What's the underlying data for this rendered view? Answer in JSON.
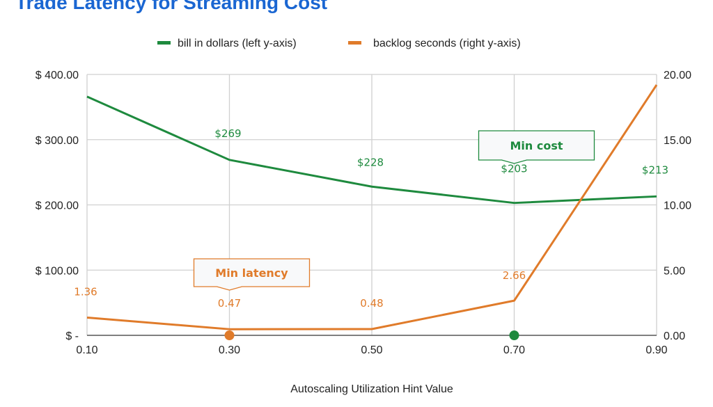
{
  "chart_data": {
    "type": "line",
    "title": "Trade Latency for Streaming Cost",
    "xlabel": "Autoscaling Utilization Hint Value",
    "x": [
      0.1,
      0.3,
      0.5,
      0.7,
      0.9
    ],
    "x_tick_labels": [
      "0.10",
      "0.30",
      "0.50",
      "0.70",
      "0.90"
    ],
    "y_left": {
      "range": [
        0,
        400
      ],
      "ticks": [
        0,
        100,
        200,
        300,
        400
      ],
      "tick_labels": [
        "$ -",
        "$ 100.00",
        "$ 200.00",
        "$ 300.00",
        "$ 400.00"
      ]
    },
    "y_right": {
      "range": [
        0,
        20
      ],
      "ticks": [
        0,
        5,
        10,
        15,
        20
      ],
      "tick_labels": [
        "0.00",
        "5.00",
        "10.00",
        "15.00",
        "20.00"
      ]
    },
    "grid": true,
    "legend_position": "top",
    "series": [
      {
        "name": "bill in dollars (left y-axis)",
        "axis": "left",
        "color": "#1e8a3e",
        "values": [
          366,
          269,
          228,
          203,
          213
        ],
        "data_labels": [
          null,
          "$269",
          "$228",
          "$203",
          "$213"
        ]
      },
      {
        "name": "backlog seconds (right y-axis)",
        "axis": "right",
        "color": "#e07b2a",
        "values": [
          1.36,
          0.47,
          0.48,
          2.66,
          19.2
        ],
        "data_labels": [
          "1.36",
          "0.47",
          "0.48",
          "2.66",
          null
        ]
      }
    ],
    "annotations": [
      {
        "text": "Min cost",
        "series": 0,
        "x": 0.7,
        "color": "#1e8a3e"
      },
      {
        "text": "Min latency",
        "series": 1,
        "x": 0.3,
        "color": "#e07b2a"
      }
    ]
  }
}
